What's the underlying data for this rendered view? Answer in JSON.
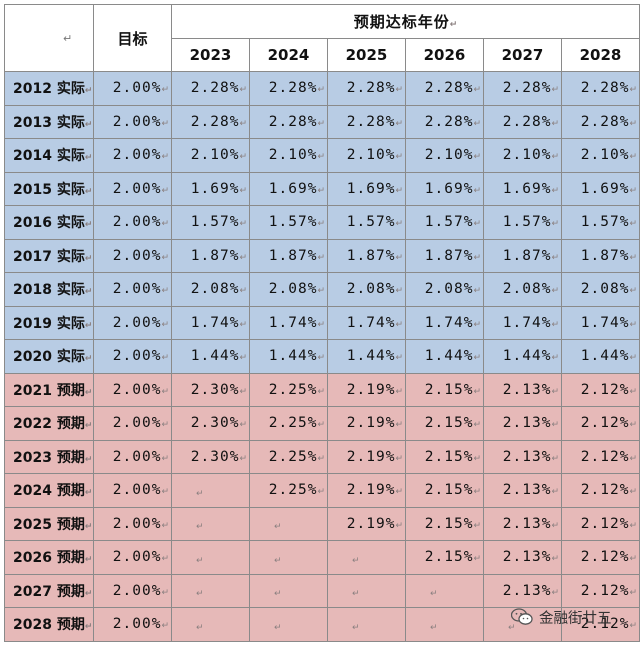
{
  "header": {
    "corner_mark": "↵",
    "target_label": "目标",
    "span_label": "预期达标年份",
    "span_mark": "↵",
    "years": [
      "2023",
      "2024",
      "2025",
      "2026",
      "2027",
      "2028"
    ]
  },
  "mark": "↵",
  "rows": [
    {
      "label": "2012 实际",
      "type": "actual",
      "target": "2.00%",
      "values": [
        "2.28%",
        "2.28%",
        "2.28%",
        "2.28%",
        "2.28%",
        "2.28%"
      ]
    },
    {
      "label": "2013 实际",
      "type": "actual",
      "target": "2.00%",
      "values": [
        "2.28%",
        "2.28%",
        "2.28%",
        "2.28%",
        "2.28%",
        "2.28%"
      ]
    },
    {
      "label": "2014 实际",
      "type": "actual",
      "target": "2.00%",
      "values": [
        "2.10%",
        "2.10%",
        "2.10%",
        "2.10%",
        "2.10%",
        "2.10%"
      ]
    },
    {
      "label": "2015 实际",
      "type": "actual",
      "target": "2.00%",
      "values": [
        "1.69%",
        "1.69%",
        "1.69%",
        "1.69%",
        "1.69%",
        "1.69%"
      ]
    },
    {
      "label": "2016 实际",
      "type": "actual",
      "target": "2.00%",
      "values": [
        "1.57%",
        "1.57%",
        "1.57%",
        "1.57%",
        "1.57%",
        "1.57%"
      ]
    },
    {
      "label": "2017 实际",
      "type": "actual",
      "target": "2.00%",
      "values": [
        "1.87%",
        "1.87%",
        "1.87%",
        "1.87%",
        "1.87%",
        "1.87%"
      ]
    },
    {
      "label": "2018 实际",
      "type": "actual",
      "target": "2.00%",
      "values": [
        "2.08%",
        "2.08%",
        "2.08%",
        "2.08%",
        "2.08%",
        "2.08%"
      ]
    },
    {
      "label": "2019 实际",
      "type": "actual",
      "target": "2.00%",
      "values": [
        "1.74%",
        "1.74%",
        "1.74%",
        "1.74%",
        "1.74%",
        "1.74%"
      ]
    },
    {
      "label": "2020 实际",
      "type": "actual",
      "target": "2.00%",
      "values": [
        "1.44%",
        "1.44%",
        "1.44%",
        "1.44%",
        "1.44%",
        "1.44%"
      ]
    },
    {
      "label": "2021 预期",
      "type": "forecast",
      "target": "2.00%",
      "values": [
        "2.30%",
        "2.25%",
        "2.19%",
        "2.15%",
        "2.13%",
        "2.12%"
      ]
    },
    {
      "label": "2022 预期",
      "type": "forecast",
      "target": "2.00%",
      "values": [
        "2.30%",
        "2.25%",
        "2.19%",
        "2.15%",
        "2.13%",
        "2.12%"
      ]
    },
    {
      "label": "2023 预期",
      "type": "forecast",
      "target": "2.00%",
      "values": [
        "2.30%",
        "2.25%",
        "2.19%",
        "2.15%",
        "2.13%",
        "2.12%"
      ]
    },
    {
      "label": "2024 预期",
      "type": "forecast",
      "target": "2.00%",
      "values": [
        "",
        "2.25%",
        "2.19%",
        "2.15%",
        "2.13%",
        "2.12%"
      ]
    },
    {
      "label": "2025 预期",
      "type": "forecast",
      "target": "2.00%",
      "values": [
        "",
        "",
        "2.19%",
        "2.15%",
        "2.13%",
        "2.12%"
      ]
    },
    {
      "label": "2026 预期",
      "type": "forecast",
      "target": "2.00%",
      "values": [
        "",
        "",
        "",
        "2.15%",
        "2.13%",
        "2.12%"
      ]
    },
    {
      "label": "2027 预期",
      "type": "forecast",
      "target": "2.00%",
      "values": [
        "",
        "",
        "",
        "",
        "2.13%",
        "2.12%"
      ]
    },
    {
      "label": "2028 预期",
      "type": "forecast",
      "target": "2.00%",
      "values": [
        "",
        "",
        "",
        "",
        "",
        "2.12%"
      ]
    }
  ],
  "watermark": {
    "text": "金融街廿五",
    "icon": "wechat-icon"
  },
  "colors": {
    "actual_row": "#b8cce4",
    "forecast_row": "#e6b9b8",
    "border": "#8a8a8a"
  }
}
